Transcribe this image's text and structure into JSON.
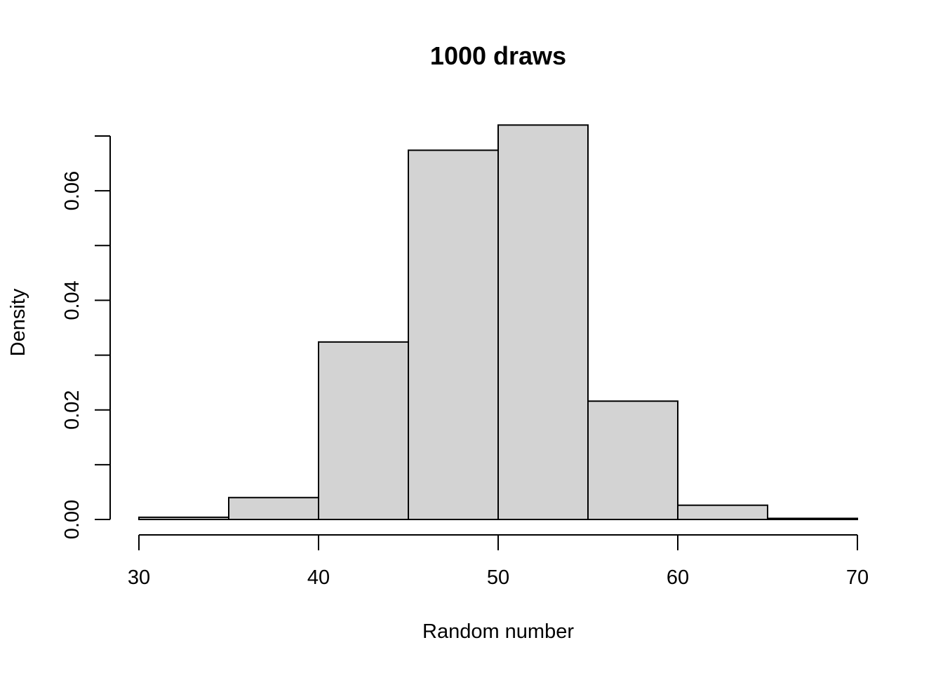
{
  "chart_data": {
    "type": "bar",
    "subtype": "histogram",
    "title": "1000 draws",
    "xlabel": "Random number",
    "ylabel": "Density",
    "bin_edges": [
      30,
      35,
      40,
      45,
      50,
      55,
      60,
      65,
      70
    ],
    "values": [
      0.0004,
      0.004,
      0.0324,
      0.0674,
      0.072,
      0.0216,
      0.0026,
      0.0002
    ],
    "xlim": [
      30,
      70
    ],
    "ylim": [
      0,
      0.07
    ],
    "x_ticks": [
      30,
      40,
      50,
      60,
      70
    ],
    "x_tick_labels": [
      "30",
      "40",
      "50",
      "60",
      "70"
    ],
    "y_ticks": [
      0,
      0.01,
      0.02,
      0.03,
      0.04,
      0.05,
      0.06,
      0.07
    ],
    "y_tick_labels": [
      "0.00",
      "",
      "0.02",
      "",
      "0.04",
      "",
      "0.06",
      ""
    ],
    "bar_fill": "#d3d3d3",
    "bar_stroke": "#000000",
    "grid": false,
    "legend": "none"
  }
}
